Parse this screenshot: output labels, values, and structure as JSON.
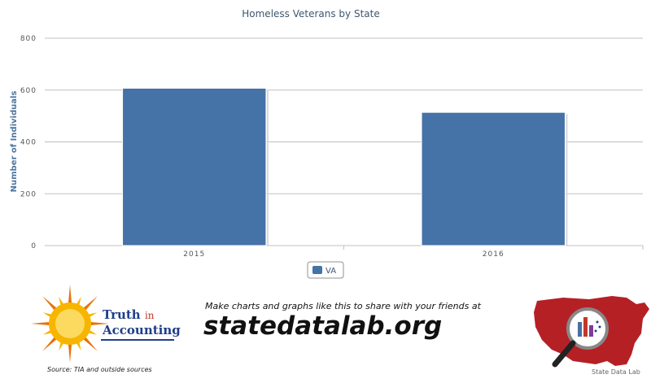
{
  "chart_data": {
    "type": "bar",
    "title": "Homeless Veterans by State",
    "xlabel": "",
    "ylabel": "Number of Individuals",
    "categories": [
      "2015",
      "2016"
    ],
    "series": [
      {
        "name": "VA",
        "values": [
          607,
          514
        ],
        "color": "#4572a7"
      }
    ],
    "ylim": [
      0,
      800
    ],
    "yticks": [
      0,
      200,
      400,
      600,
      800
    ],
    "grid": true,
    "legend": "bottom-center"
  },
  "footer": {
    "logo_truth": "Truth",
    "logo_in": "in",
    "logo_accounting": "Accounting",
    "source_note": "Source: TIA and outside sources",
    "promo_text": "Make charts and graphs like this to share with your friends at",
    "promo_url": "statedatalab.org",
    "brand_caption": "State Data Lab",
    "sun_color": "#f7b500",
    "map_color": "#b52025"
  }
}
